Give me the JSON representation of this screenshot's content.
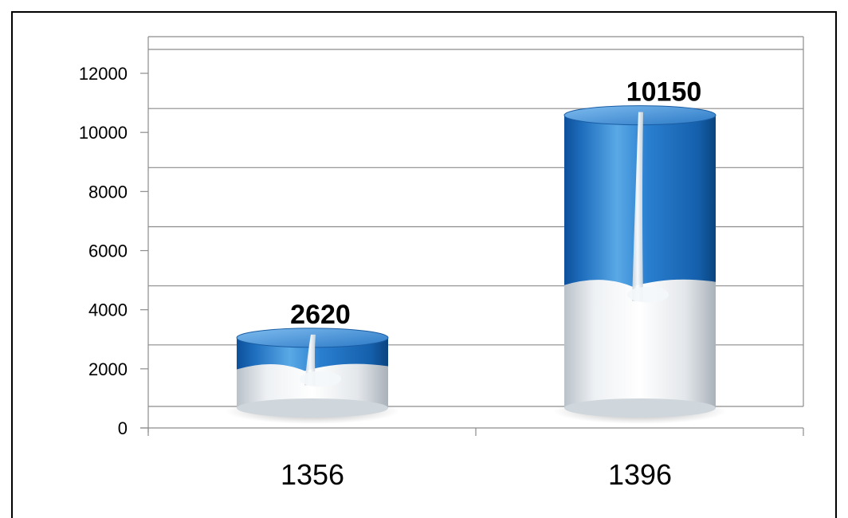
{
  "chart_data": {
    "type": "bar",
    "style": "3d-cylinder",
    "title": "",
    "xlabel": "",
    "ylabel": "",
    "categories": [
      "1356",
      "1396"
    ],
    "values": [
      2620,
      10150
    ],
    "data_labels": [
      "2620",
      "10150"
    ],
    "ylim": [
      0,
      12000
    ],
    "yticks": [
      0,
      2000,
      4000,
      6000,
      8000,
      10000,
      12000
    ],
    "ytick_labels": [
      "0",
      "2000",
      "4000",
      "6000",
      "8000",
      "10000",
      "12000"
    ],
    "grid": true,
    "legend": "none",
    "colors": {
      "cylinder_blue": "#1f6fbf",
      "cylinder_light": "#5aa9e6",
      "milk": "#eef1f4",
      "grid": "#8c8c8c"
    }
  }
}
